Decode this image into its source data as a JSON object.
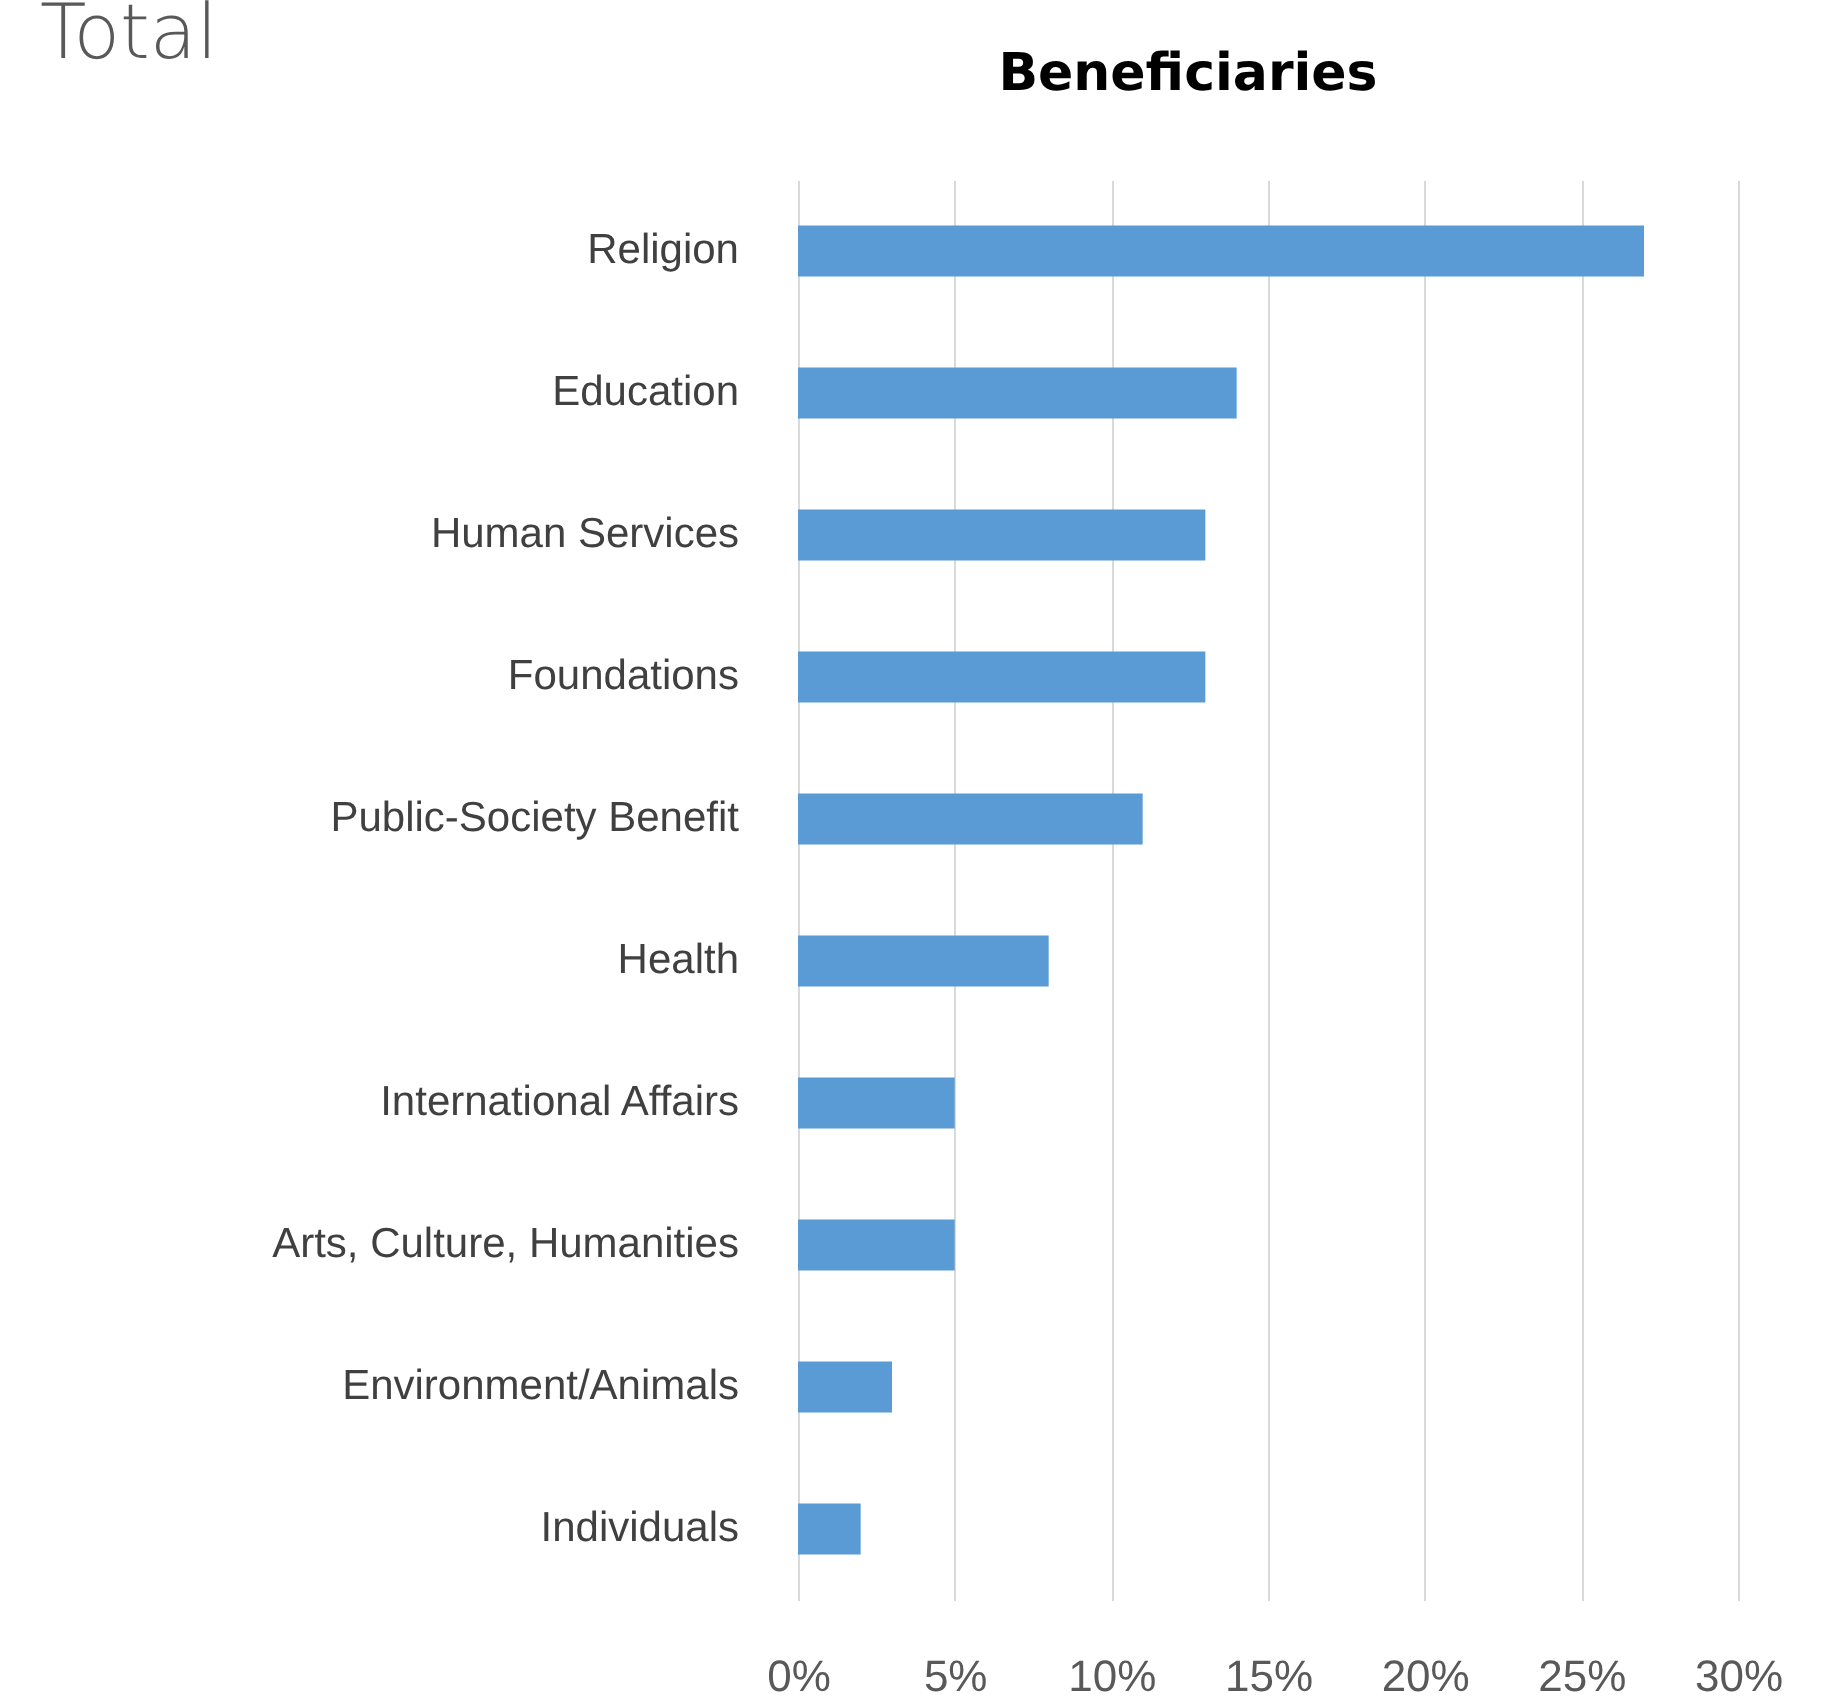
{
  "chart_data": {
    "type": "bar",
    "orientation": "horizontal",
    "title": "Beneficiaries",
    "annotations": [
      "Total"
    ],
    "categories": [
      "Religion",
      "Education",
      "Human Services",
      "Foundations",
      "Public-Society Benefit",
      "Health",
      "International Affairs",
      "Arts, Culture, Humanities",
      "Environment/Animals",
      "Individuals"
    ],
    "values": [
      27,
      14,
      13,
      13,
      11,
      8,
      5,
      5,
      3,
      2
    ],
    "color": "#5b9bd5",
    "xlim": [
      0,
      30
    ],
    "xticks": [
      {
        "value": 0,
        "label": "0%"
      },
      {
        "value": 5,
        "label": "5%"
      },
      {
        "value": 10,
        "label": "10%"
      },
      {
        "value": 15,
        "label": "15%"
      },
      {
        "value": 20,
        "label": "20%"
      },
      {
        "value": 25,
        "label": "25%"
      },
      {
        "value": 30,
        "label": "30%"
      }
    ],
    "grid": "x"
  }
}
